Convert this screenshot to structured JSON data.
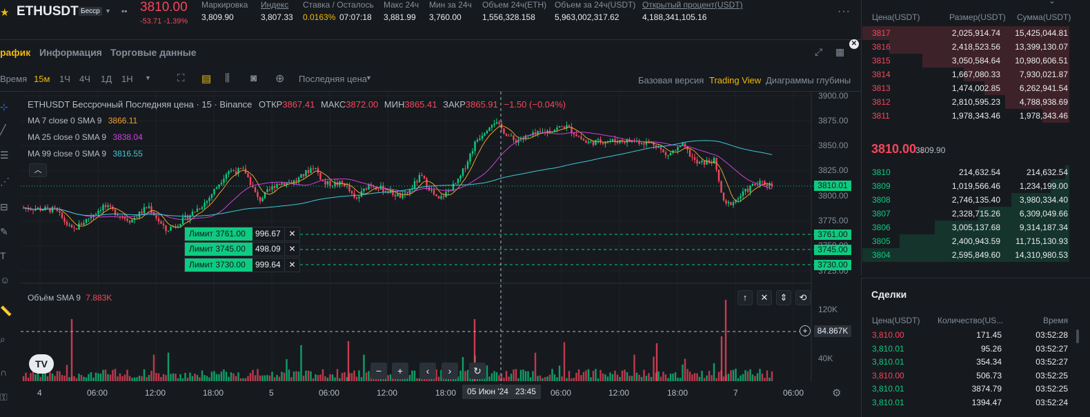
{
  "header": {
    "symbol": "ETHUSDT",
    "badge": "Бесср",
    "last_price": "3810.00",
    "change": "-53.71 -1.39%",
    "stats": [
      {
        "label": "Маркировка",
        "value": "3,809.90",
        "underline": false
      },
      {
        "label": "Индекс",
        "value": "3,807.33",
        "underline": true
      },
      {
        "label": "Ставка / Осталось",
        "value": "0.0163%",
        "value2": "07:07:18",
        "underline": false
      },
      {
        "label": "Макс 24ч",
        "value": "3,881.99",
        "underline": false
      },
      {
        "label": "Мин за 24ч",
        "value": "3,760.00",
        "underline": false
      },
      {
        "label": "Объем 24ч(ETH)",
        "value": "1,556,328.158",
        "underline": false
      },
      {
        "label": "Объем за 24ч(USDT)",
        "value": "5,963,002,317.62",
        "underline": false
      },
      {
        "label": "Открытый процент(USDT)",
        "value": "4,188,341,105.16",
        "underline": true
      }
    ]
  },
  "tabs": {
    "chart": "рафик",
    "info": "Информация",
    "trading": "Торговые данные"
  },
  "toolbar": {
    "time": "Время",
    "intervals": [
      "15м",
      "1Ч",
      "4Ч",
      "1Д",
      "1Н"
    ],
    "active_interval": "15м",
    "price_type": "Последняя цена",
    "views": [
      "Базовая версия",
      "Trading View",
      "Диаграммы глубины"
    ],
    "active_view": "Trading View"
  },
  "chart": {
    "title": "ETHUSDT Бессрочный Последняя цена · 15 · Binance",
    "ohlc": {
      "open_label": "ОТКР",
      "open": "3867.41",
      "high_label": "МАКС",
      "high": "3872.00",
      "low_label": "МИН",
      "low": "3865.41",
      "close_label": "ЗАКР",
      "close": "3865.91",
      "delta": "−1.50 (−0.04%)"
    },
    "ma": [
      {
        "label": "MA 7 close 0 SMA 9",
        "value": "3866.11",
        "color": "#f0a030"
      },
      {
        "label": "MA 25 close 0 SMA 9",
        "value": "3838.04",
        "color": "#d040e0"
      },
      {
        "label": "MA 99 close 0 SMA 9",
        "value": "3816.55",
        "color": "#40c8d8"
      }
    ],
    "volume_legend": "Объём SMA 9",
    "volume_value": "7.883K",
    "price_axis": [
      "3900.00",
      "3875.00",
      "3850.00",
      "3825.00",
      "3800.00",
      "3775.00",
      "3750.00",
      "3725.00"
    ],
    "volume_axis": [
      "120K",
      "40K"
    ],
    "current_price_tag": "3810.01",
    "crosshair_volume": "84.867K",
    "order_tags": [
      "3761.00",
      "3745.00",
      "3730.00"
    ],
    "orders": [
      {
        "label": "Лимит 3761.00",
        "qty": "996.67"
      },
      {
        "label": "Лимит 3745.00",
        "qty": "498.09"
      },
      {
        "label": "Лимит 3730.00",
        "qty": "999.64"
      }
    ],
    "time_axis": [
      "4",
      "06:00",
      "12:00",
      "18:00",
      "5",
      "06:00",
      "12:00",
      "18:00",
      "06:00",
      "12:00",
      "18:00",
      "7",
      "06:00"
    ],
    "crosshair_time": "05 Июн '24   23:45",
    "colors": {
      "up": "#0ecb81",
      "down": "#f6465d"
    }
  },
  "orderbook": {
    "headers": [
      "Цена(USDT)",
      "Размер(USDT)",
      "Сумма(USDT)"
    ],
    "asks": [
      {
        "price": "3817",
        "size": "2,025,914.74",
        "sum": "15,425,044.81",
        "depth": 1.0
      },
      {
        "price": "3816",
        "size": "2,418,523.56",
        "sum": "13,399,130.07",
        "depth": 0.87
      },
      {
        "price": "3815",
        "size": "3,050,584.64",
        "sum": "10,980,606.51",
        "depth": 0.71
      },
      {
        "price": "3814",
        "size": "1,667,080.33",
        "sum": "7,930,021.87",
        "depth": 0.51
      },
      {
        "price": "3813",
        "size": "1,474,002.85",
        "sum": "6,262,941.54",
        "depth": 0.41
      },
      {
        "price": "3812",
        "size": "2,810,595.23",
        "sum": "4,788,938.69",
        "depth": 0.31
      },
      {
        "price": "3811",
        "size": "1,978,343.46",
        "sum": "1,978,343.46",
        "depth": 0.13
      }
    ],
    "mid_price": "3810.00",
    "mid_arrow": "↓",
    "mark": "3809.90",
    "bids": [
      {
        "price": "3810",
        "size": "214,632.54",
        "sum": "214,632.54",
        "depth": 0.02
      },
      {
        "price": "3809",
        "size": "1,019,566.46",
        "sum": "1,234,199.00",
        "depth": 0.09
      },
      {
        "price": "3808",
        "size": "2,746,135.40",
        "sum": "3,980,334.40",
        "depth": 0.28
      },
      {
        "price": "3807",
        "size": "2,328,715.26",
        "sum": "6,309,049.66",
        "depth": 0.44
      },
      {
        "price": "3806",
        "size": "3,005,137.68",
        "sum": "9,314,187.34",
        "depth": 0.65
      },
      {
        "price": "3805",
        "size": "2,400,943.59",
        "sum": "11,715,130.93",
        "depth": 0.82
      },
      {
        "price": "3804",
        "size": "2,595,849.60",
        "sum": "14,310,980.53",
        "depth": 1.0
      }
    ]
  },
  "trades": {
    "title": "Сделки",
    "headers": [
      "Цена(USDT)",
      "Количество(US...",
      "Время"
    ],
    "rows": [
      {
        "price": "3,810.00",
        "qty": "171.45",
        "time": "03:52:28",
        "side": "sell"
      },
      {
        "price": "3,810.01",
        "qty": "95.26",
        "time": "03:52:27",
        "side": "buy"
      },
      {
        "price": "3,810.01",
        "qty": "354.34",
        "time": "03:52:27",
        "side": "buy"
      },
      {
        "price": "3,810.00",
        "qty": "506.73",
        "time": "03:52:25",
        "side": "sell"
      },
      {
        "price": "3,810.01",
        "qty": "3874.79",
        "time": "03:52:25",
        "side": "buy"
      },
      {
        "price": "3,810.01",
        "qty": "1394.47",
        "time": "03:52:24",
        "side": "buy"
      }
    ]
  }
}
